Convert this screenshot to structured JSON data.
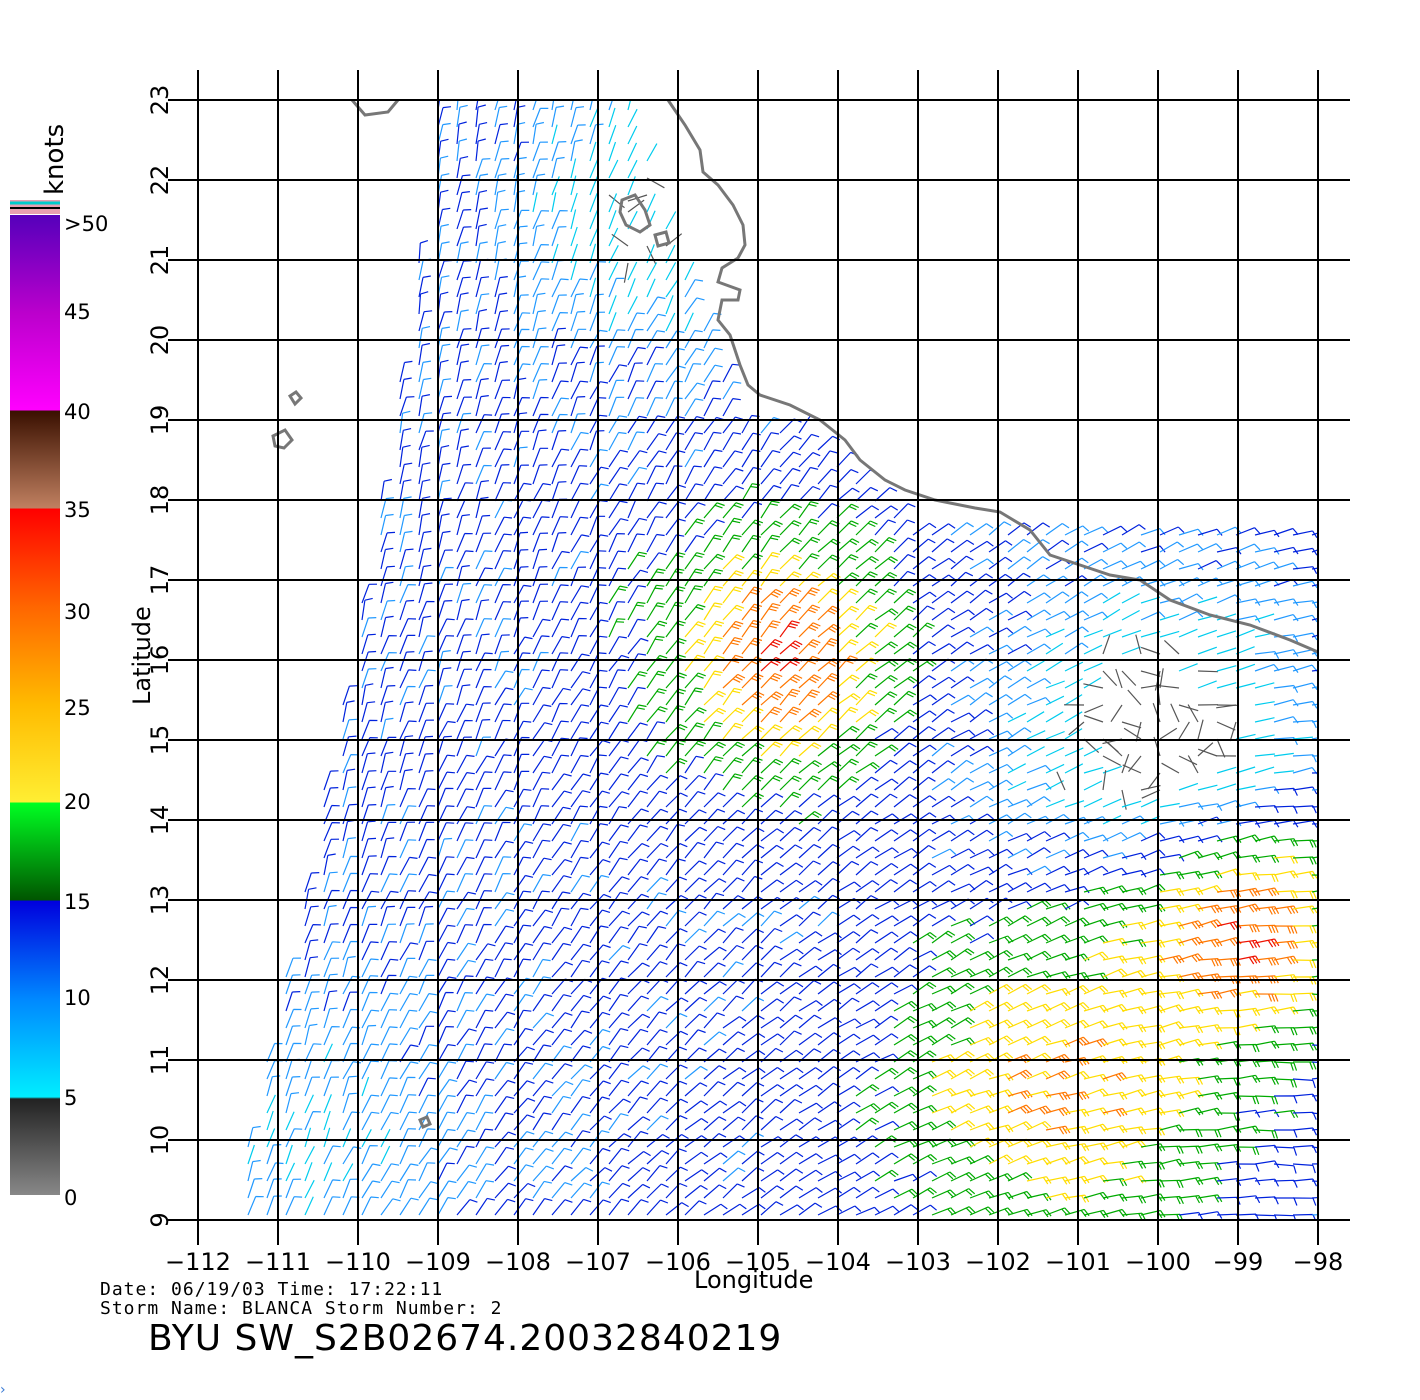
{
  "colorbar": {
    "units": "knots",
    "tick_labels": [
      ">50",
      "45",
      "40",
      "35",
      "30",
      "25",
      "20",
      "15",
      "10",
      "5",
      "0"
    ],
    "segments": [
      {
        "range": "0-5",
        "colors": [
          "#888888",
          "#222222"
        ]
      },
      {
        "range": "5-10",
        "colors": [
          "#00eeff",
          "#0088ff"
        ]
      },
      {
        "range": "10-15",
        "colors": [
          "#0066ff",
          "#0000dd"
        ]
      },
      {
        "range": "15-20",
        "colors": [
          "#006600",
          "#00ff22"
        ]
      },
      {
        "range": "20-25",
        "colors": [
          "#ffee33",
          "#ffbb00"
        ]
      },
      {
        "range": "25-30",
        "colors": [
          "#ff8800",
          "#ee3300"
        ]
      },
      {
        "range": "30-35",
        "colors": [
          "#ff3300",
          "#ff0000"
        ]
      },
      {
        "range": "35-40",
        "colors": [
          "#c08060",
          "#3a1000"
        ]
      },
      {
        "range": "40-45",
        "colors": [
          "#ff00ff",
          "#cc00cc"
        ]
      },
      {
        "range": "45-50",
        "colors": [
          "#aa00cc",
          "#6600bb"
        ]
      }
    ]
  },
  "axes": {
    "x_title": "Longitude",
    "y_title": "Latitude",
    "x_ticks": [
      "-112",
      "-111",
      "-110",
      "-109",
      "-108",
      "-107",
      "-106",
      "-105",
      "-104",
      "-103",
      "-102",
      "-101",
      "-100",
      "-99",
      "-98"
    ],
    "y_ticks": [
      "9",
      "10",
      "11",
      "12",
      "13",
      "14",
      "15",
      "16",
      "17",
      "18",
      "19",
      "20",
      "21",
      "22",
      "23"
    ],
    "x_range": [
      -112,
      -98
    ],
    "y_range": [
      9,
      23
    ]
  },
  "footer": {
    "date_line": "Date: 06/19/03   Time: 17:22:11",
    "storm_line": "Storm Name: BLANCA   Storm Number: 2",
    "file_id": "BYU SW_S2B02674.20032840219"
  },
  "chart_data": {
    "type": "wind-barb map",
    "units": "knots",
    "xlabel": "Longitude",
    "ylabel": "Latitude",
    "xlim": [
      -112,
      -98
    ],
    "ylim": [
      9,
      23
    ],
    "grid": true,
    "high_wind_regions": [
      {
        "label": "",
        "center": [
          -104.5,
          16.3
        ],
        "speed_range": [
          25,
          35
        ]
      },
      {
        "label": "",
        "center": [
          -99.5,
          12.5
        ],
        "speed_range": [
          25,
          35
        ]
      },
      {
        "label": "",
        "center": [
          -101.5,
          10.5
        ],
        "speed_range": [
          20,
          30
        ]
      }
    ]
  }
}
